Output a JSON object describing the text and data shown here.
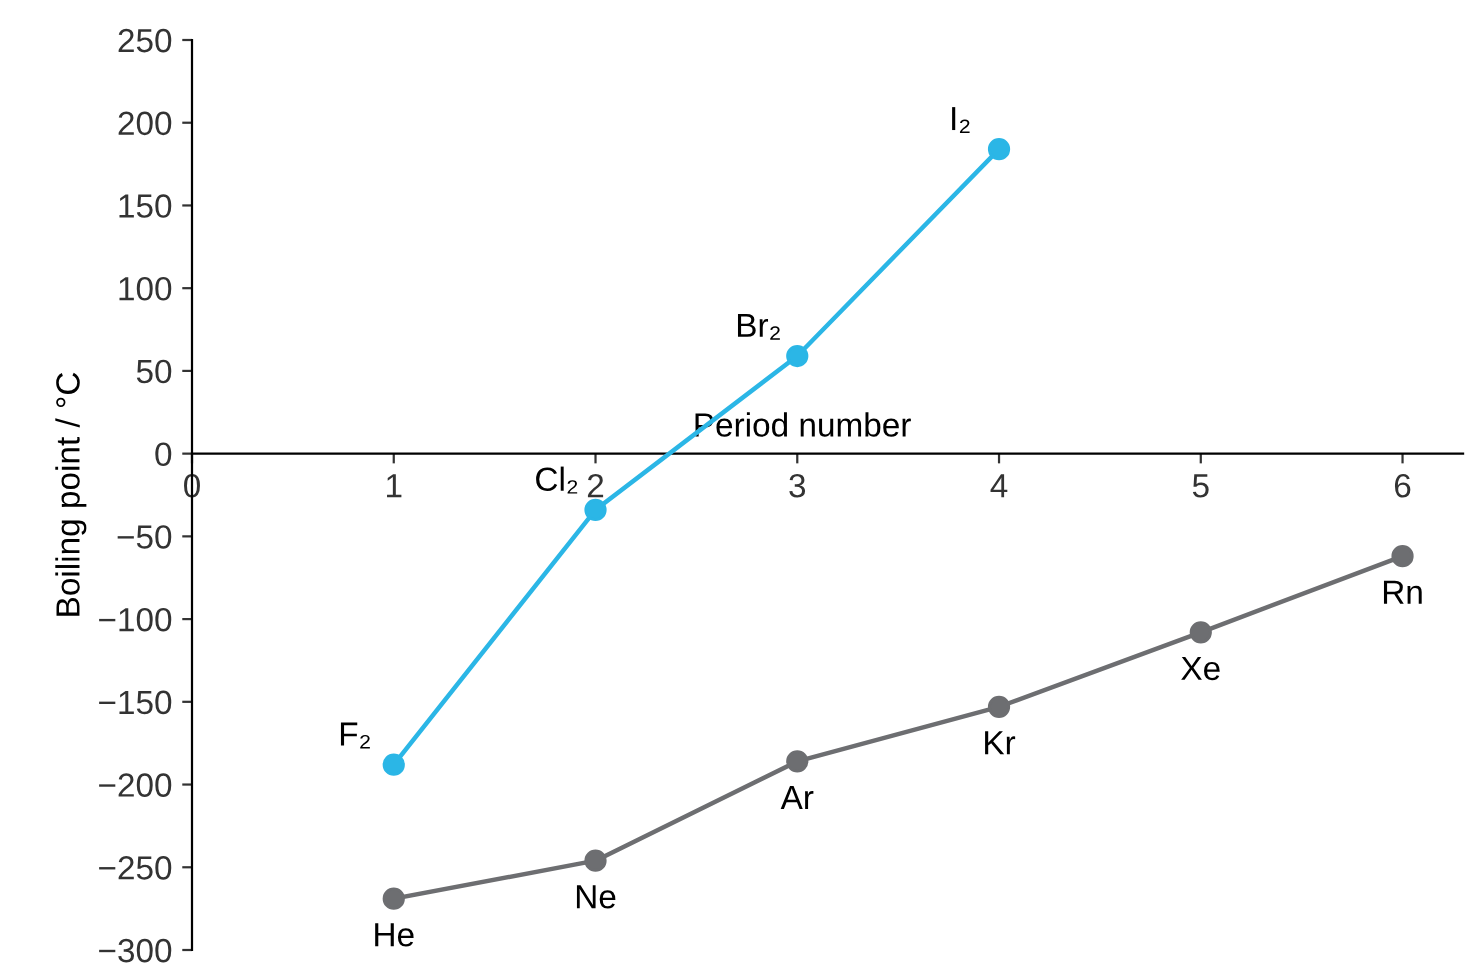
{
  "chart_data": {
    "type": "line",
    "xlabel": "Period number",
    "ylabel": "Boiling point / °C",
    "series": [
      {
        "color": "#2bb6e6",
        "x": [
          1,
          2,
          3,
          4
        ],
        "values": [
          -188,
          -34,
          59,
          184
        ]
      },
      {
        "color": "#6d6e71",
        "x": [
          1,
          2,
          3,
          4,
          5,
          6
        ],
        "values": [
          -269,
          -246,
          -186,
          -153,
          -108,
          -62
        ]
      }
    ],
    "annotations": [
      {
        "text": "F₂",
        "x": 1,
        "y": -188
      },
      {
        "text": "Cl₂",
        "x": 2,
        "y": -34
      },
      {
        "text": "Br₂",
        "x": 3,
        "y": 59
      },
      {
        "text": "I₂",
        "x": 4,
        "y": 184
      },
      {
        "text": "He",
        "x": 1,
        "y": -269
      },
      {
        "text": "Ne",
        "x": 2,
        "y": -246
      },
      {
        "text": "Ar",
        "x": 3,
        "y": -186
      },
      {
        "text": "Kr",
        "x": 4,
        "y": -153
      },
      {
        "text": "Xe",
        "x": 5,
        "y": -108
      },
      {
        "text": "Rn",
        "x": 6,
        "y": -62
      }
    ],
    "xlim": [
      0,
      6.3
    ],
    "xticks": [
      0,
      1,
      2,
      3,
      4,
      5,
      6
    ],
    "ylim": [
      -300,
      250
    ],
    "yticks": [
      {
        "value": -300,
        "label": "−300"
      },
      {
        "value": -250,
        "label": "−250"
      },
      {
        "value": -200,
        "label": "−200"
      },
      {
        "value": -150,
        "label": "−150"
      },
      {
        "value": -100,
        "label": "−100"
      },
      {
        "value": -50,
        "label": "−50"
      },
      0,
      50,
      100,
      150,
      200,
      250
    ],
    "marker": "circle",
    "line_style": "solid",
    "grid": false,
    "legend": false
  }
}
